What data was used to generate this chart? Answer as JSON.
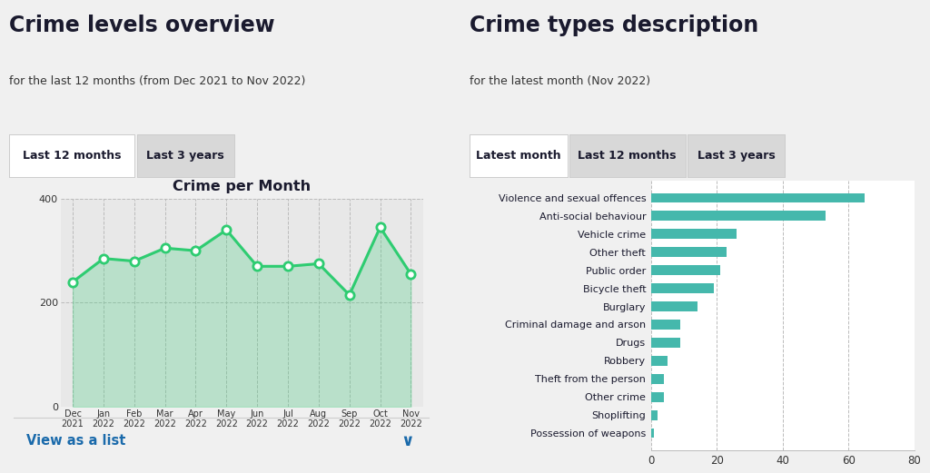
{
  "left_title": "Crime levels overview",
  "left_subtitle": "for the last 12 months (from Dec 2021 to Nov 2022)",
  "right_title": "Crime types description",
  "right_subtitle": "for the latest month (Nov 2022)",
  "left_tab1": "Last 12 months",
  "left_tab2": "Last 3 years",
  "right_tab1": "Latest month",
  "right_tab2": "Last 12 months",
  "right_tab3": "Last 3 years",
  "line_chart_title": "Crime per Month",
  "months": [
    "Dec\n2021",
    "Jan\n2022",
    "Feb\n2022",
    "Mar\n2022",
    "Apr\n2022",
    "May\n2022",
    "Jun\n2022",
    "Jul\n2022",
    "Aug\n2022",
    "Sep\n2022",
    "Oct\n2022",
    "Nov\n2022"
  ],
  "line_values": [
    240,
    285,
    280,
    305,
    300,
    340,
    270,
    270,
    275,
    215,
    345,
    255
  ],
  "line_color": "#2ecc71",
  "line_marker_fill": "#ffffff",
  "line_marker_edge": "#2ecc71",
  "fill_color": "#2ecc71",
  "ylim_line": [
    0,
    400
  ],
  "yticks_line": [
    0,
    200,
    400
  ],
  "view_as_list_text": "View as a list",
  "view_as_list_color": "#1a6aab",
  "bar_categories": [
    "Violence and sexual offences",
    "Anti-social behaviour",
    "Vehicle crime",
    "Other theft",
    "Public order",
    "Bicycle theft",
    "Burglary",
    "Criminal damage and arson",
    "Drugs",
    "Robbery",
    "Theft from the person",
    "Other crime",
    "Shoplifting",
    "Possession of weapons"
  ],
  "bar_values": [
    65,
    53,
    26,
    23,
    21,
    19,
    14,
    9,
    9,
    5,
    4,
    4,
    2,
    1
  ],
  "bar_color": "#45b8ac",
  "bar_xlim": [
    0,
    80
  ],
  "bar_xticks": [
    0,
    20,
    40,
    60,
    80
  ],
  "bg_color": "#f0f0f0",
  "panel_bg": "#ffffff",
  "text_color": "#1a1a2e",
  "subtitle_color": "#333333",
  "tab_active_bg": "#ffffff",
  "tab_inactive_bg": "#d8d8d8",
  "chart_bg": "#e8e8e8",
  "grid_color": "#bbbbbb",
  "tab_border_color": "#cccccc"
}
